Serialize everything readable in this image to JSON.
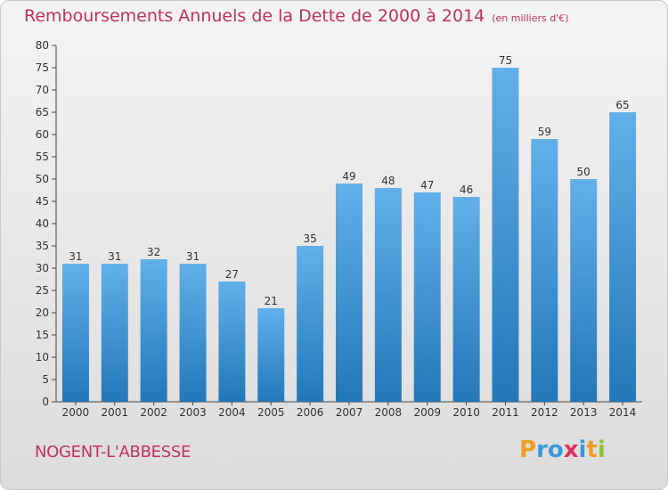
{
  "title": "Remboursements Annuels de la Dette de 2000 à 2014",
  "title_unit": "(en milliers d'€)",
  "commune": "NOGENT-L'ABBESSE",
  "logo": {
    "letters": [
      "P",
      "r",
      "o",
      "x",
      "i",
      "t",
      "i"
    ],
    "colors": [
      "#f0a020",
      "#3a9ad9",
      "#3a9ad9",
      "#e03060",
      "#3a9ad9",
      "#f0a020",
      "#8cc63f"
    ]
  },
  "colors": {
    "bar_light": "#62b0ea",
    "bar_dark": "#2377b8",
    "title": "#c0315e"
  },
  "chart_data": {
    "type": "bar",
    "categories": [
      "2000",
      "2001",
      "2002",
      "2003",
      "2004",
      "2005",
      "2006",
      "2007",
      "2008",
      "2009",
      "2010",
      "2011",
      "2012",
      "2013",
      "2014"
    ],
    "values": [
      31,
      31,
      32,
      31,
      27,
      21,
      35,
      49,
      48,
      47,
      46,
      75,
      59,
      50,
      65
    ],
    "ylim": [
      0,
      80
    ],
    "yticks": [
      0,
      5,
      10,
      15,
      20,
      25,
      30,
      35,
      40,
      45,
      50,
      55,
      60,
      65,
      70,
      75,
      80
    ],
    "grid": false,
    "data_labels": true
  }
}
